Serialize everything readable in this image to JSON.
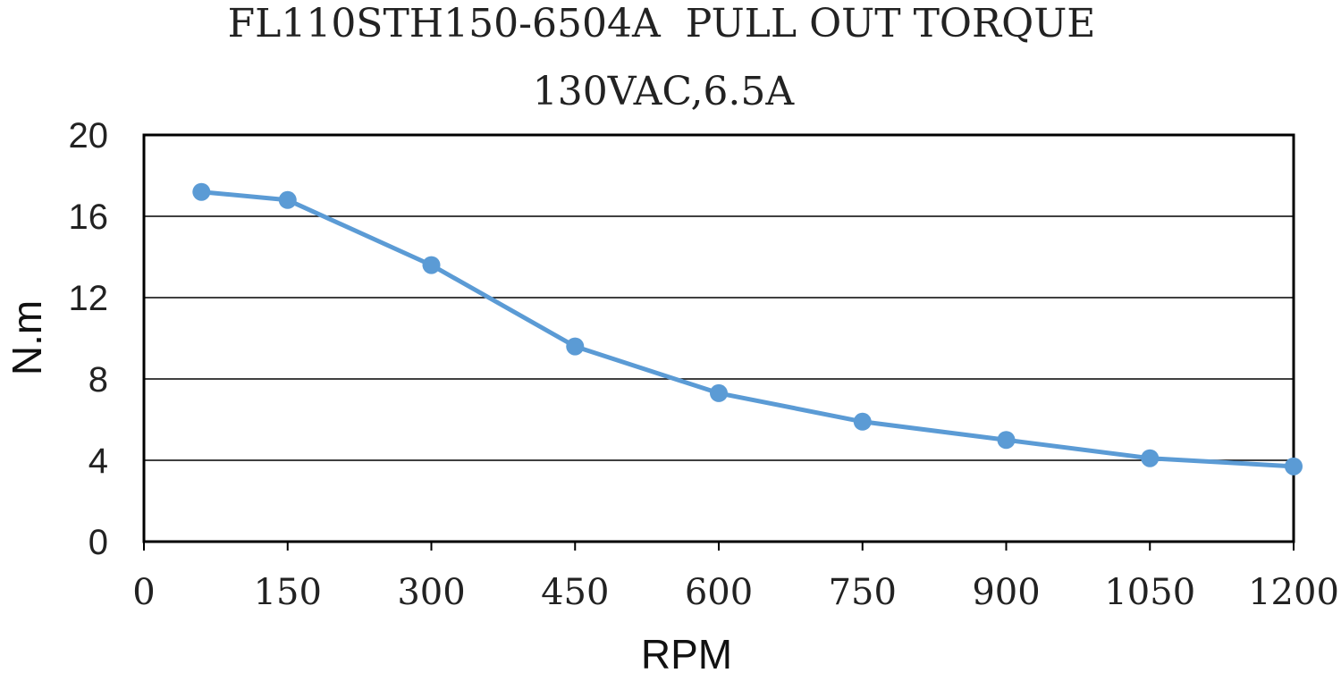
{
  "chart_data": {
    "type": "line",
    "title": "FL110STH150-6504A  PULL OUT TORQUE",
    "subtitle": "130VAC,6.5A",
    "xlabel": "RPM",
    "ylabel": "N.m",
    "xlim": [
      0,
      1200
    ],
    "ylim": [
      0,
      20
    ],
    "xticks": [
      "0",
      "150",
      "300",
      "450",
      "600",
      "750",
      "900",
      "1050",
      "1200"
    ],
    "yticks": [
      "0",
      "4",
      "8",
      "12",
      "16",
      "20"
    ],
    "grid": "horizontal",
    "legend": "none",
    "series": [
      {
        "color": "#5B9BD5",
        "x": [
          60,
          150,
          300,
          450,
          600,
          750,
          900,
          1050,
          1200
        ],
        "y": [
          17.2,
          16.8,
          13.6,
          9.6,
          7.3,
          5.9,
          5.0,
          4.1,
          3.7
        ]
      }
    ]
  }
}
